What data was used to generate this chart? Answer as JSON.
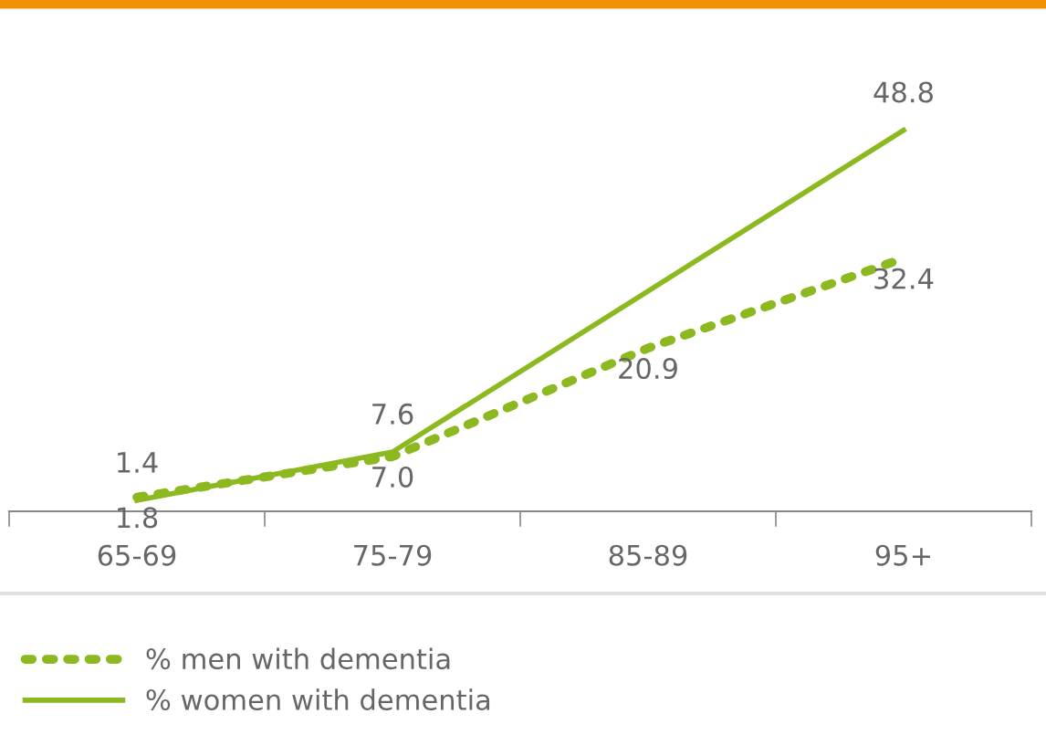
{
  "chart_data": {
    "type": "line",
    "categories": [
      "65-69",
      "75-79",
      "85-89",
      "95+"
    ],
    "series": [
      {
        "name": "% men with dementia",
        "color": "#8cb820",
        "line_style": "dotted",
        "values": [
          1.8,
          7.0,
          20.9,
          32.4
        ],
        "value_labels": [
          "1.8",
          "7.0",
          "20.9",
          "32.4"
        ]
      },
      {
        "name": "% women with dementia",
        "color": "#8cb820",
        "line_style": "solid",
        "values": [
          1.4,
          7.6,
          28.2,
          48.8
        ],
        "value_labels": [
          "1.4",
          "7.6",
          null,
          "48.8"
        ]
      }
    ],
    "legend": "bottom",
    "grid": false,
    "marker": "none"
  }
}
